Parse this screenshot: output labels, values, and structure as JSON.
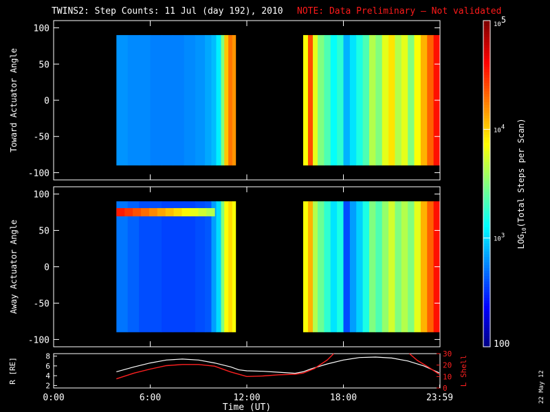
{
  "header": {
    "title": "TWINS2: Step Counts: 11 Jul (day 192), 2010",
    "note": "NOTE: Data Preliminary – Not validated",
    "note_color": "#ff1a1a"
  },
  "date_stamp": "22 May 12",
  "chart_data": [
    {
      "id": "toward",
      "type": "heatmap",
      "ylabel": "Toward Actuator Angle",
      "ylim": [
        -110,
        110
      ],
      "yticks": [
        100,
        50,
        0,
        -50,
        -100
      ],
      "xlim": [
        0,
        24
      ],
      "data_blocks": [
        {
          "t_start": 3.9,
          "t_end": 11.3,
          "angle_min": -90,
          "angle_max": 90
        },
        {
          "t_start": 15.5,
          "t_end": 23.95,
          "angle_min": -90,
          "angle_max": 90
        }
      ],
      "columns": [
        {
          "t": 3.9,
          "v": 0.27
        },
        {
          "t": 4.6,
          "v": 0.26
        },
        {
          "t": 5.3,
          "v": 0.26
        },
        {
          "t": 6.0,
          "v": 0.25
        },
        {
          "t": 6.7,
          "v": 0.25
        },
        {
          "t": 7.4,
          "v": 0.25
        },
        {
          "t": 8.1,
          "v": 0.26
        },
        {
          "t": 8.8,
          "v": 0.27
        },
        {
          "t": 9.4,
          "v": 0.29
        },
        {
          "t": 9.8,
          "v": 0.31
        },
        {
          "t": 10.1,
          "v": 0.36
        },
        {
          "t": 10.4,
          "v": 0.5
        },
        {
          "t": 10.6,
          "v": 0.68
        },
        {
          "t": 10.85,
          "v": 0.76
        },
        {
          "t": 11.1,
          "v": 0.73
        },
        {
          "t": 15.5,
          "v": 0.62
        },
        {
          "t": 15.8,
          "v": 0.8
        },
        {
          "t": 16.1,
          "v": 0.6
        },
        {
          "t": 16.4,
          "v": 0.5
        },
        {
          "t": 16.8,
          "v": 0.45
        },
        {
          "t": 17.2,
          "v": 0.38
        },
        {
          "t": 17.6,
          "v": 0.42
        },
        {
          "t": 18.0,
          "v": 0.3
        },
        {
          "t": 18.4,
          "v": 0.35
        },
        {
          "t": 18.8,
          "v": 0.4
        },
        {
          "t": 19.2,
          "v": 0.45
        },
        {
          "t": 19.6,
          "v": 0.55
        },
        {
          "t": 20.0,
          "v": 0.5
        },
        {
          "t": 20.4,
          "v": 0.6
        },
        {
          "t": 20.8,
          "v": 0.65
        },
        {
          "t": 21.2,
          "v": 0.55
        },
        {
          "t": 21.6,
          "v": 0.6
        },
        {
          "t": 22.0,
          "v": 0.5
        },
        {
          "t": 22.4,
          "v": 0.62
        },
        {
          "t": 22.8,
          "v": 0.7
        },
        {
          "t": 23.2,
          "v": 0.78
        },
        {
          "t": 23.6,
          "v": 0.86
        }
      ]
    },
    {
      "id": "away",
      "type": "heatmap",
      "ylabel": "Away Actuator Angle",
      "ylim": [
        -110,
        110
      ],
      "yticks": [
        100,
        50,
        0,
        -50,
        -100
      ],
      "xlim": [
        0,
        24
      ],
      "data_blocks": [
        {
          "t_start": 3.9,
          "t_end": 11.3,
          "angle_min": -90,
          "angle_max": 90
        },
        {
          "t_start": 15.5,
          "t_end": 23.95,
          "angle_min": -90,
          "angle_max": 90
        }
      ],
      "columns": [
        {
          "t": 3.9,
          "v": 0.24
        },
        {
          "t": 4.6,
          "v": 0.22
        },
        {
          "t": 5.3,
          "v": 0.2
        },
        {
          "t": 6.0,
          "v": 0.2
        },
        {
          "t": 6.7,
          "v": 0.19
        },
        {
          "t": 7.4,
          "v": 0.19
        },
        {
          "t": 8.1,
          "v": 0.19
        },
        {
          "t": 8.8,
          "v": 0.2
        },
        {
          "t": 9.4,
          "v": 0.21
        },
        {
          "t": 9.8,
          "v": 0.28
        },
        {
          "t": 10.1,
          "v": 0.34
        },
        {
          "t": 10.4,
          "v": 0.5
        },
        {
          "t": 10.6,
          "v": 0.62
        },
        {
          "t": 10.85,
          "v": 0.66
        },
        {
          "t": 11.1,
          "v": 0.62
        },
        {
          "t": 15.5,
          "v": 0.62
        },
        {
          "t": 15.8,
          "v": 0.7
        },
        {
          "t": 16.1,
          "v": 0.55
        },
        {
          "t": 16.4,
          "v": 0.48
        },
        {
          "t": 16.8,
          "v": 0.42
        },
        {
          "t": 17.2,
          "v": 0.35
        },
        {
          "t": 17.6,
          "v": 0.4
        },
        {
          "t": 18.0,
          "v": 0.2
        },
        {
          "t": 18.4,
          "v": 0.28
        },
        {
          "t": 18.8,
          "v": 0.33
        },
        {
          "t": 19.2,
          "v": 0.4
        },
        {
          "t": 19.6,
          "v": 0.5
        },
        {
          "t": 20.0,
          "v": 0.45
        },
        {
          "t": 20.4,
          "v": 0.52
        },
        {
          "t": 20.8,
          "v": 0.58
        },
        {
          "t": 21.2,
          "v": 0.5
        },
        {
          "t": 21.6,
          "v": 0.55
        },
        {
          "t": 22.0,
          "v": 0.5
        },
        {
          "t": 22.4,
          "v": 0.6
        },
        {
          "t": 22.8,
          "v": 0.7
        },
        {
          "t": 23.2,
          "v": 0.78
        },
        {
          "t": 23.6,
          "v": 0.86
        }
      ],
      "hot_band": {
        "t_start": 3.9,
        "t_end": 10.0,
        "angle_center": 75,
        "value_start": 0.85,
        "value_end": 0.55
      }
    },
    {
      "id": "orbit",
      "type": "line",
      "ylabel": "R [RE]",
      "ylim": [
        1.5,
        8.5
      ],
      "yticks": [
        2,
        4,
        6,
        8
      ],
      "y2label": "L Shell",
      "y2lim": [
        0,
        30
      ],
      "y2ticks": [
        10,
        20,
        30
      ],
      "xlim": [
        0,
        24
      ],
      "xticks": [
        "0:00",
        "6:00",
        "12:00",
        "18:00",
        "23:59"
      ],
      "xtick_values": [
        0,
        6,
        12,
        18,
        23.98
      ],
      "xlabel": "Time (UT)",
      "series": [
        {
          "name": "R",
          "color": "#ffffff",
          "x": [
            3.9,
            5,
            6,
            7,
            8,
            9,
            10,
            11,
            11.5,
            12,
            13,
            14,
            15,
            15.5,
            16,
            17,
            18,
            19,
            20,
            21,
            22,
            23,
            23.95
          ],
          "y": [
            4.8,
            5.8,
            6.6,
            7.2,
            7.4,
            7.2,
            6.6,
            5.8,
            5.2,
            5.0,
            4.9,
            4.7,
            4.5,
            4.8,
            5.4,
            6.4,
            7.2,
            7.7,
            7.8,
            7.6,
            7.0,
            6.0,
            4.6
          ]
        },
        {
          "name": "L Shell",
          "color": "#ff2020",
          "axis": "right",
          "x": [
            3.9,
            5,
            6,
            7,
            8,
            9,
            10,
            11,
            12,
            13,
            14,
            15,
            15.5,
            16.2,
            17,
            17.4,
            22.1,
            22.6,
            23.3,
            23.95
          ],
          "y": [
            8,
            13,
            16.5,
            19.5,
            20.5,
            20.5,
            19,
            14,
            10,
            10.5,
            11.5,
            12,
            13,
            17,
            24.5,
            30,
            30,
            24,
            18,
            12
          ]
        }
      ]
    }
  ],
  "colorbar": {
    "min": 100,
    "max": 100000,
    "ticks": [
      {
        "label": "10",
        "exp": "5",
        "value": 100000
      },
      {
        "label": "10",
        "exp": "4",
        "value": 10000
      },
      {
        "label": "10",
        "exp": "3",
        "value": 1000
      },
      {
        "label": "100",
        "exp": "",
        "value": 100
      }
    ],
    "label_pre": "LOG",
    "label_sub": "10",
    "label_post": "(Total Steps per Scan)"
  }
}
